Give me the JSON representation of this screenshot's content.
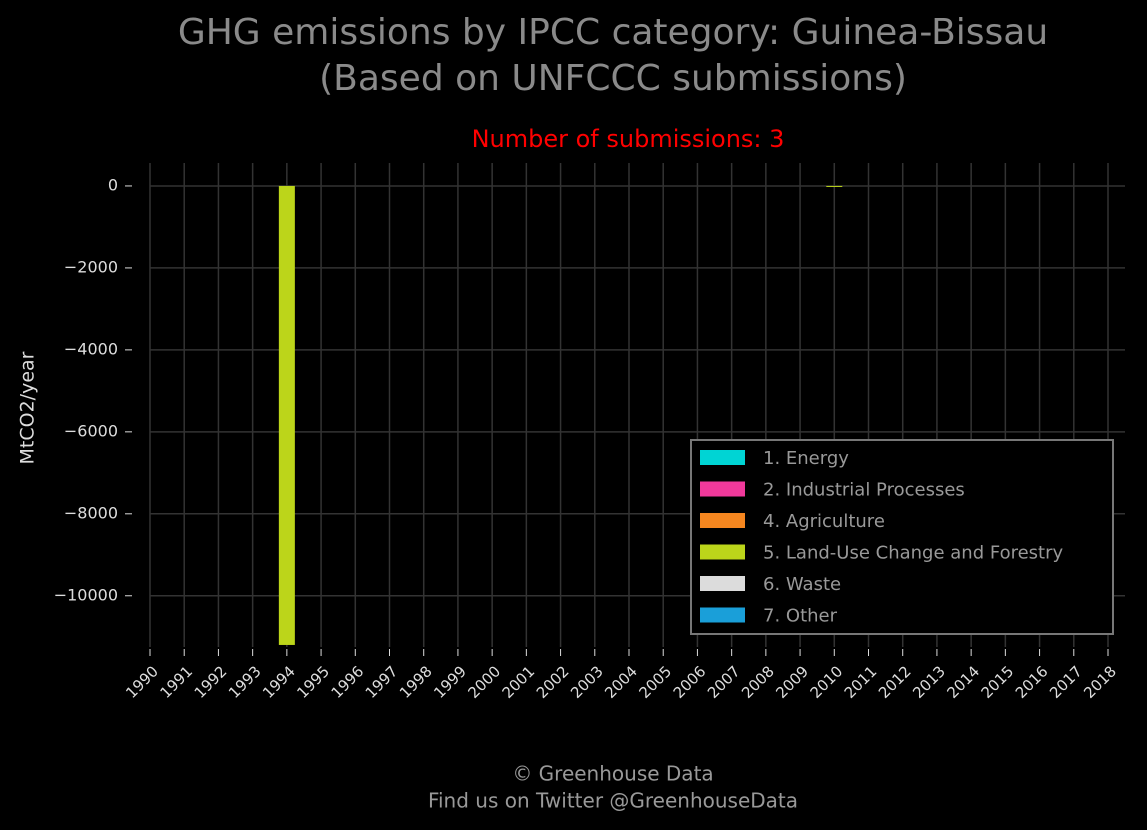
{
  "chart_data": {
    "type": "bar",
    "stacked": true,
    "title": "GHG emissions by IPCC category: Guinea-Bissau",
    "title_line2": "(Based on UNFCCC submissions)",
    "subtitle": "Number of submissions: 3",
    "ylabel": "MtCO2/year",
    "categories": [
      "1990",
      "1991",
      "1992",
      "1993",
      "1994",
      "1995",
      "1996",
      "1997",
      "1998",
      "1999",
      "2000",
      "2001",
      "2002",
      "2003",
      "2004",
      "2005",
      "2006",
      "2007",
      "2008",
      "2009",
      "2010",
      "2011",
      "2012",
      "2013",
      "2014",
      "2015",
      "2016",
      "2017",
      "2018"
    ],
    "series": [
      {
        "name": "1. Energy",
        "color": "#00d4d4",
        "values": [
          null,
          null,
          null,
          null,
          null,
          null,
          null,
          null,
          null,
          null,
          null,
          null,
          null,
          null,
          null,
          null,
          null,
          null,
          null,
          null,
          null,
          null,
          null,
          null,
          null,
          null,
          null,
          null,
          null
        ]
      },
      {
        "name": "2. Industrial Processes",
        "color": "#f0399b",
        "values": [
          null,
          null,
          null,
          null,
          null,
          null,
          null,
          null,
          null,
          null,
          null,
          null,
          null,
          null,
          null,
          null,
          null,
          null,
          null,
          null,
          null,
          null,
          null,
          null,
          null,
          null,
          null,
          null,
          null
        ]
      },
      {
        "name": "4. Agriculture",
        "color": "#f5861f",
        "values": [
          null,
          null,
          null,
          null,
          null,
          null,
          null,
          null,
          null,
          null,
          null,
          null,
          null,
          null,
          null,
          null,
          null,
          null,
          null,
          null,
          null,
          null,
          null,
          null,
          null,
          null,
          null,
          null,
          null
        ]
      },
      {
        "name": "5. Land-Use Change and Forestry",
        "color": "#bcd51a",
        "values": [
          null,
          null,
          null,
          null,
          -11200,
          null,
          null,
          null,
          null,
          null,
          null,
          null,
          null,
          null,
          null,
          null,
          null,
          null,
          null,
          null,
          -20,
          null,
          null,
          null,
          null,
          null,
          null,
          null,
          null
        ]
      },
      {
        "name": "6. Waste",
        "color": "#dcdcdc",
        "values": [
          null,
          null,
          null,
          null,
          null,
          null,
          null,
          null,
          null,
          null,
          null,
          null,
          null,
          null,
          null,
          null,
          null,
          null,
          null,
          null,
          null,
          null,
          null,
          null,
          null,
          null,
          null,
          null,
          null
        ]
      },
      {
        "name": "7. Other",
        "color": "#1a9fd9",
        "values": [
          null,
          null,
          null,
          null,
          null,
          null,
          null,
          null,
          null,
          null,
          null,
          null,
          null,
          null,
          null,
          null,
          null,
          null,
          null,
          null,
          null,
          null,
          null,
          null,
          null,
          null,
          null,
          null,
          null
        ]
      }
    ],
    "ylim": [
      -11250,
      560
    ],
    "yticks": [
      0,
      {
        "value": -2000,
        "label": "−2000"
      },
      {
        "value": -4000,
        "label": "−4000"
      },
      {
        "value": -6000,
        "label": "−6000"
      },
      {
        "value": -8000,
        "label": "−8000"
      },
      {
        "value": -10000,
        "label": "−10000"
      }
    ],
    "grid": true,
    "legend": "lower right",
    "footer": [
      "© Greenhouse Data",
      "Find us on Twitter @GreenhouseData"
    ]
  }
}
